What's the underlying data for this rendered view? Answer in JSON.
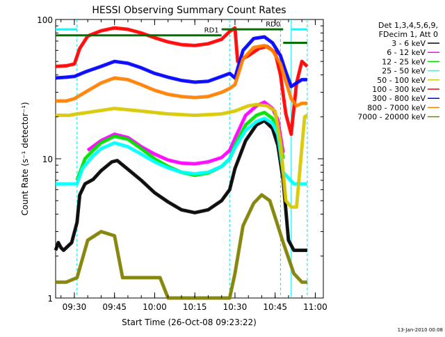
{
  "chart_data": {
    "type": "line",
    "title": "HESSI Observing Summary Count Rates",
    "xlabel": "Start Time (26-Oct-08 09:23:22)",
    "ylabel": "Count Rate (s⁻¹ detector⁻¹)",
    "y_scale": "log",
    "ylim": [
      1,
      100
    ],
    "xlim": [
      "09:23",
      "11:03"
    ],
    "x_ticks": [
      "09:30",
      "09:45",
      "10:00",
      "10:15",
      "10:30",
      "10:45",
      "11:00"
    ],
    "y_ticks": [
      "1",
      "10",
      "100"
    ],
    "legend_header": [
      "Det 1,3,4,5,6,9,",
      "FDecim 1, Att 0"
    ],
    "footer_stamp": "13-Jan-2010 00:08",
    "series": [
      {
        "name": "3 - 6 keV",
        "color": "#000000",
        "points": [
          [
            "09:23",
            2.2
          ],
          [
            "09:24",
            2.5
          ],
          [
            "09:25",
            2.3
          ],
          [
            "09:26",
            2.2
          ],
          [
            "09:27",
            2.3
          ],
          [
            "09:28",
            2.4
          ],
          [
            "09:29",
            2.5
          ],
          [
            "09:31",
            3.5
          ],
          [
            "09:32",
            5.5
          ],
          [
            "09:34",
            6.6
          ],
          [
            "09:37",
            7.1
          ],
          [
            "09:40",
            8.2
          ],
          [
            "09:44",
            9.5
          ],
          [
            "09:46",
            9.7
          ],
          [
            "09:50",
            8.4
          ],
          [
            "09:55",
            7.0
          ],
          [
            "10:00",
            5.7
          ],
          [
            "10:05",
            4.9
          ],
          [
            "10:10",
            4.3
          ],
          [
            "10:15",
            4.1
          ],
          [
            "10:20",
            4.3
          ],
          [
            "10:25",
            5.0
          ],
          [
            "10:28",
            6.0
          ],
          [
            "10:30",
            8.5
          ],
          [
            "10:34",
            13.5
          ],
          [
            "10:38",
            17.5
          ],
          [
            "10:41",
            18.8
          ],
          [
            "10:44",
            16.5
          ],
          [
            "10:46",
            12.5
          ],
          [
            "10:48",
            7.0
          ],
          [
            "10:50",
            2.6
          ],
          [
            "10:52",
            2.2
          ],
          [
            "10:55",
            2.2
          ],
          [
            "10:57",
            2.2
          ]
        ]
      },
      {
        "name": "6 - 12 keV",
        "color": "#ff00ff",
        "points": [
          [
            "09:35",
            11.5
          ],
          [
            "09:40",
            13.5
          ],
          [
            "09:45",
            15.0
          ],
          [
            "09:50",
            14.2
          ],
          [
            "09:55",
            12.2
          ],
          [
            "10:00",
            10.8
          ],
          [
            "10:05",
            9.8
          ],
          [
            "10:10",
            9.3
          ],
          [
            "10:15",
            9.2
          ],
          [
            "10:20",
            9.5
          ],
          [
            "10:25",
            10.2
          ],
          [
            "10:28",
            11.5
          ],
          [
            "10:30",
            14.0
          ],
          [
            "10:34",
            20.5
          ],
          [
            "10:38",
            24.0
          ],
          [
            "10:41",
            25.5
          ],
          [
            "10:44",
            23.0
          ],
          [
            "10:46",
            19.0
          ],
          [
            "10:48",
            11.0
          ]
        ]
      },
      {
        "name": "12 - 25 keV",
        "color": "#00e000",
        "points": [
          [
            "09:31",
            7.0
          ],
          [
            "09:34",
            10.0
          ],
          [
            "09:37",
            11.5
          ],
          [
            "09:40",
            13.0
          ],
          [
            "09:45",
            14.5
          ],
          [
            "09:50",
            13.8
          ],
          [
            "09:55",
            11.8
          ],
          [
            "10:00",
            10.0
          ],
          [
            "10:05",
            8.8
          ],
          [
            "10:10",
            8.0
          ],
          [
            "10:15",
            7.6
          ],
          [
            "10:20",
            7.9
          ],
          [
            "10:25",
            8.8
          ],
          [
            "10:28",
            10.0
          ],
          [
            "10:30",
            12.5
          ],
          [
            "10:34",
            17.5
          ],
          [
            "10:38",
            20.5
          ],
          [
            "10:41",
            21.5
          ],
          [
            "10:44",
            19.5
          ],
          [
            "10:46",
            16.5
          ],
          [
            "10:48",
            10.0
          ]
        ]
      },
      {
        "name": "25 - 50 keV",
        "color": "#00ffff",
        "points": [
          [
            "09:23",
            6.6
          ],
          [
            "09:26",
            6.6
          ],
          [
            "09:29",
            6.6
          ],
          [
            "09:31",
            6.6
          ],
          [
            "09:33",
            8.5
          ],
          [
            "09:37",
            10.5
          ],
          [
            "09:40",
            11.8
          ],
          [
            "09:45",
            13.0
          ],
          [
            "09:50",
            12.2
          ],
          [
            "09:55",
            10.8
          ],
          [
            "10:00",
            9.5
          ],
          [
            "10:05",
            8.6
          ],
          [
            "10:10",
            8.0
          ],
          [
            "10:15",
            7.8
          ],
          [
            "10:20",
            8.0
          ],
          [
            "10:25",
            8.8
          ],
          [
            "10:28",
            10.0
          ],
          [
            "10:30",
            12.0
          ],
          [
            "10:34",
            16.0
          ],
          [
            "10:38",
            18.5
          ],
          [
            "10:41",
            19.5
          ],
          [
            "10:44",
            18.0
          ],
          [
            "10:46",
            15.0
          ],
          [
            "10:48",
            8.0
          ],
          [
            "10:52",
            6.6
          ],
          [
            "10:56",
            6.6
          ],
          [
            "10:57",
            6.6
          ]
        ]
      },
      {
        "name": "50 - 100 keV",
        "color": "#d8c800",
        "points": [
          [
            "09:23",
            20.5
          ],
          [
            "09:28",
            20.5
          ],
          [
            "09:31",
            21.0
          ],
          [
            "09:35",
            21.5
          ],
          [
            "09:45",
            23.0
          ],
          [
            "09:55",
            22.0
          ],
          [
            "10:05",
            21.0
          ],
          [
            "10:15",
            20.5
          ],
          [
            "10:25",
            21.0
          ],
          [
            "10:30",
            22.0
          ],
          [
            "10:35",
            24.0
          ],
          [
            "10:38",
            24.5
          ],
          [
            "10:42",
            24.0
          ],
          [
            "10:45",
            22.0
          ],
          [
            "10:47",
            13.0
          ],
          [
            "10:49",
            5.0
          ],
          [
            "10:51",
            4.5
          ],
          [
            "10:53",
            4.5
          ],
          [
            "10:56",
            20.0
          ],
          [
            "10:57",
            20.5
          ]
        ]
      },
      {
        "name": "100 - 300 keV",
        "color": "#ff0000",
        "points": [
          [
            "09:23",
            46.0
          ],
          [
            "09:27",
            46.5
          ],
          [
            "09:30",
            48.0
          ],
          [
            "09:32",
            62.0
          ],
          [
            "09:35",
            76.0
          ],
          [
            "09:40",
            83.0
          ],
          [
            "09:45",
            87.0
          ],
          [
            "09:50",
            85.0
          ],
          [
            "09:55",
            80.0
          ],
          [
            "10:00",
            74.0
          ],
          [
            "10:05",
            69.0
          ],
          [
            "10:10",
            66.0
          ],
          [
            "10:15",
            65.0
          ],
          [
            "10:20",
            67.0
          ],
          [
            "10:25",
            72.0
          ],
          [
            "10:28",
            82.0
          ],
          [
            "10:30",
            87.0
          ],
          [
            "10:31",
            50.0
          ],
          [
            "10:35",
            55.0
          ],
          [
            "10:39",
            62.0
          ],
          [
            "10:42",
            64.0
          ],
          [
            "10:45",
            58.0
          ],
          [
            "10:47",
            40.0
          ],
          [
            "10:49",
            21.0
          ],
          [
            "10:51",
            15.0
          ],
          [
            "10:53",
            35.0
          ],
          [
            "10:55",
            50.0
          ],
          [
            "10:57",
            46.0
          ]
        ]
      },
      {
        "name": "300 - 800 keV",
        "color": "#0000ff",
        "points": [
          [
            "09:23",
            38.0
          ],
          [
            "09:27",
            38.5
          ],
          [
            "09:30",
            39.0
          ],
          [
            "09:34",
            42.0
          ],
          [
            "09:40",
            46.0
          ],
          [
            "09:45",
            50.0
          ],
          [
            "09:50",
            48.5
          ],
          [
            "09:55",
            45.0
          ],
          [
            "10:00",
            41.0
          ],
          [
            "10:05",
            38.5
          ],
          [
            "10:10",
            36.5
          ],
          [
            "10:15",
            35.5
          ],
          [
            "10:20",
            36.0
          ],
          [
            "10:25",
            39.0
          ],
          [
            "10:28",
            41.0
          ],
          [
            "10:30",
            38.0
          ],
          [
            "10:33",
            60.0
          ],
          [
            "10:37",
            73.0
          ],
          [
            "10:41",
            75.0
          ],
          [
            "10:44",
            68.0
          ],
          [
            "10:47",
            55.0
          ],
          [
            "10:49",
            42.0
          ],
          [
            "10:51",
            33.0
          ],
          [
            "10:53",
            35.0
          ],
          [
            "10:55",
            37.0
          ],
          [
            "10:57",
            37.0
          ]
        ]
      },
      {
        "name": "800 - 7000 keV",
        "color": "#ff8000",
        "points": [
          [
            "09:23",
            26.0
          ],
          [
            "09:27",
            26.0
          ],
          [
            "09:30",
            27.0
          ],
          [
            "09:34",
            30.0
          ],
          [
            "09:40",
            35.0
          ],
          [
            "09:45",
            38.0
          ],
          [
            "09:50",
            37.0
          ],
          [
            "09:55",
            34.0
          ],
          [
            "10:00",
            31.0
          ],
          [
            "10:05",
            29.0
          ],
          [
            "10:10",
            28.0
          ],
          [
            "10:15",
            27.5
          ],
          [
            "10:20",
            28.0
          ],
          [
            "10:25",
            30.0
          ],
          [
            "10:28",
            32.0
          ],
          [
            "10:30",
            34.0
          ],
          [
            "10:33",
            52.0
          ],
          [
            "10:37",
            63.0
          ],
          [
            "10:41",
            65.0
          ],
          [
            "10:44",
            60.0
          ],
          [
            "10:47",
            48.0
          ],
          [
            "10:49",
            36.0
          ],
          [
            "10:51",
            27.0
          ],
          [
            "10:53",
            24.0
          ],
          [
            "10:55",
            25.0
          ],
          [
            "10:57",
            25.0
          ]
        ]
      },
      {
        "name": "7000 - 20000 keV",
        "color": "#808000",
        "points": [
          [
            "09:23",
            1.3
          ],
          [
            "09:27",
            1.3
          ],
          [
            "09:31",
            1.4
          ],
          [
            "09:35",
            2.6
          ],
          [
            "09:40",
            3.0
          ],
          [
            "09:45",
            2.8
          ],
          [
            "09:48",
            1.4
          ],
          [
            "09:55",
            1.4
          ],
          [
            "10:02",
            1.4
          ],
          [
            "10:05",
            1.0
          ],
          [
            "10:28",
            1.0
          ],
          [
            "10:30",
            1.5
          ],
          [
            "10:33",
            3.3
          ],
          [
            "10:37",
            4.8
          ],
          [
            "10:40",
            5.5
          ],
          [
            "10:43",
            5.0
          ],
          [
            "10:45",
            3.8
          ],
          [
            "10:48",
            2.5
          ],
          [
            "10:52",
            1.5
          ],
          [
            "10:55",
            1.3
          ],
          [
            "10:57",
            1.3
          ]
        ]
      }
    ],
    "annotations": [
      {
        "label": "RD0",
        "t0": "10:25",
        "t1": "10:48",
        "y": 85
      },
      {
        "label": "RD1",
        "t0": "09:23",
        "t1": "10:25",
        "y": 77
      },
      {
        "label": "",
        "t0": "10:48",
        "t1": "10:57",
        "y": 68
      }
    ],
    "cyan_bars": [
      {
        "t0": "09:23",
        "t1": "09:31",
        "y": 85
      },
      {
        "t0": "10:51",
        "t1": "10:57",
        "y": 85
      }
    ],
    "dashed_times": [
      "09:31",
      "10:28",
      "10:47",
      "10:57"
    ],
    "solid_times": [
      "10:51"
    ]
  }
}
